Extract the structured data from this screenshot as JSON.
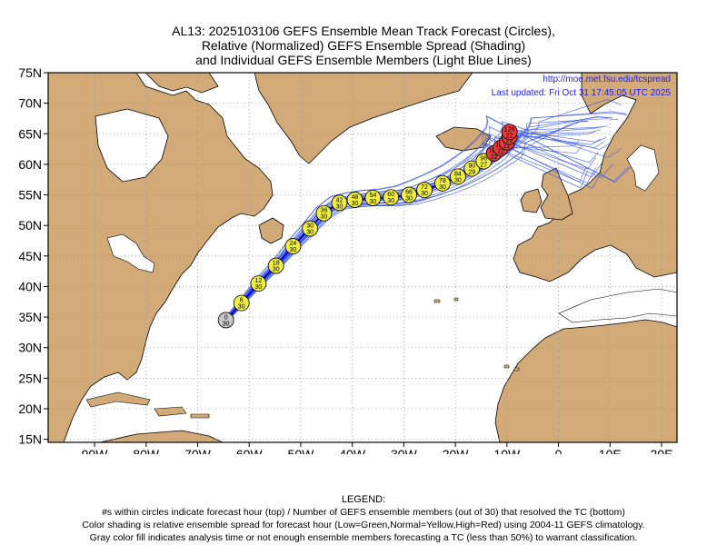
{
  "title": {
    "line1": "AL13: 2025103106 GEFS Ensemble Mean Track Forecast (Circles),",
    "line2": "Relative (Normalized) GEFS Ensemble Spread (Shading)",
    "line3": "and Individual GEFS Ensemble Members (Light Blue Lines)"
  },
  "source_url": "http://moe.met.fsu.edu/tcspread",
  "last_updated": "Last updated: Fri Oct 31 17:45:05 UTC 2025",
  "lat_labels": [
    "75N",
    "70N",
    "65N",
    "60N",
    "55N",
    "50N",
    "45N",
    "40N",
    "35N",
    "30N",
    "25N",
    "20N",
    "15N"
  ],
  "lon_labels": [
    "90W",
    "80W",
    "70W",
    "60W",
    "50W",
    "40W",
    "30W",
    "20W",
    "10W",
    "0",
    "10E",
    "20E"
  ],
  "lat_values": [
    75,
    70,
    65,
    60,
    55,
    50,
    45,
    40,
    35,
    30,
    25,
    20,
    15
  ],
  "lon_values": [
    -90,
    -80,
    -70,
    -60,
    -50,
    -40,
    -30,
    -20,
    -10,
    0,
    10,
    20
  ],
  "map_extent": {
    "lon_min": -99,
    "lon_max": 23,
    "lat_min": 14.5,
    "lat_max": 75
  },
  "colors": {
    "land": "#d2aa78",
    "ocean": "#ffffff",
    "member_track": "#3a57e8",
    "mean_track": "#0000cc",
    "normal_spread": "#eeee44",
    "high_spread": "#e83c3c",
    "analysis_gray": "#c8c8c8",
    "url_text": "#1a1aff"
  },
  "forecast_points": [
    {
      "hour": "0",
      "members": "30",
      "lon": -64.5,
      "lat": 34.5,
      "fill": "gray"
    },
    {
      "hour": "6",
      "members": "30",
      "lon": -61.5,
      "lat": 37.3,
      "fill": "yellow"
    },
    {
      "hour": "12",
      "members": "30",
      "lon": -58.2,
      "lat": 40.5,
      "fill": "yellow"
    },
    {
      "hour": "18",
      "members": "30",
      "lon": -54.8,
      "lat": 43.4,
      "fill": "yellow"
    },
    {
      "hour": "24",
      "members": "30",
      "lon": -51.5,
      "lat": 46.6,
      "fill": "yellow"
    },
    {
      "hour": "30",
      "members": "30",
      "lon": -48.2,
      "lat": 49.5,
      "fill": "yellow"
    },
    {
      "hour": "36",
      "members": "30",
      "lon": -45.5,
      "lat": 52.0,
      "fill": "yellow"
    },
    {
      "hour": "42",
      "members": "30",
      "lon": -42.5,
      "lat": 53.7,
      "fill": "yellow"
    },
    {
      "hour": "48",
      "members": "30",
      "lon": -39.5,
      "lat": 54.2,
      "fill": "yellow"
    },
    {
      "hour": "54",
      "members": "30",
      "lon": -36.0,
      "lat": 54.5,
      "fill": "yellow"
    },
    {
      "hour": "60",
      "members": "30",
      "lon": -32.5,
      "lat": 54.6,
      "fill": "yellow"
    },
    {
      "hour": "66",
      "members": "30",
      "lon": -29.0,
      "lat": 55.0,
      "fill": "yellow"
    },
    {
      "hour": "72",
      "members": "30",
      "lon": -26.0,
      "lat": 55.8,
      "fill": "yellow"
    },
    {
      "hour": "78",
      "members": "30",
      "lon": -22.5,
      "lat": 56.9,
      "fill": "yellow"
    },
    {
      "hour": "84",
      "members": "30",
      "lon": -19.5,
      "lat": 58.0,
      "fill": "yellow"
    },
    {
      "hour": "90",
      "members": "29",
      "lon": -16.8,
      "lat": 59.3,
      "fill": "yellow"
    },
    {
      "hour": "96",
      "members": "27",
      "lon": -14.5,
      "lat": 60.5,
      "fill": "yellow"
    },
    {
      "hour": "102",
      "members": "22",
      "lon": -12.5,
      "lat": 61.8,
      "fill": "red"
    },
    {
      "hour": "108",
      "members": "22",
      "lon": -11.2,
      "lat": 62.7,
      "fill": "red"
    },
    {
      "hour": "114",
      "members": "22",
      "lon": -10.0,
      "lat": 63.6,
      "fill": "red"
    },
    {
      "hour": "120",
      "members": "22",
      "lon": -9.5,
      "lat": 64.5,
      "fill": "red"
    },
    {
      "hour": "126",
      "members": "22",
      "lon": -9.5,
      "lat": 65.3,
      "fill": "red"
    }
  ],
  "legend": {
    "heading": "LEGEND:",
    "line1": "#s within circles indicate forecast hour (top) / Number of GEFS ensemble members (out of 30) that resolved the TC (bottom)",
    "line2": "Color shading is relative ensemble spread for forecast hour (Low=Green,Normal=Yellow,High=Red) using 2004-11 GEFS climatology.",
    "line3": "Gray color fill indicates analysis time or not enough ensemble members forecasting a TC (less than 50%) to warrant classification."
  }
}
